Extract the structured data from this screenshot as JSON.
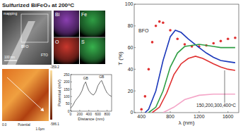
{
  "title": "Sulfurized BiFeO₃ at 200ᵒC",
  "tem": {
    "labels": [
      "mapping",
      "BFO",
      "FTO"
    ],
    "scale_bar": "100 nm"
  },
  "eds_maps": [
    {
      "label": "Bi",
      "color": "#8a3fb0"
    },
    {
      "label": "Fe",
      "color": "#2f9e44"
    },
    {
      "label": "O",
      "color": "#c8372d"
    },
    {
      "label": "S",
      "color": "#37b24d"
    }
  ],
  "afm": {
    "x_start": "0.0",
    "label": "Potential",
    "x_end": "1.0µm",
    "colorbar_max": -359.2,
    "colorbar_min": -586.1
  },
  "chart_data": [
    {
      "type": "line",
      "x_label": "Distance (nm)",
      "y_label": "Potential (mV)",
      "annotations": [
        "GB",
        "GB"
      ],
      "color": "#444444",
      "x": [
        0,
        50,
        100,
        150,
        200,
        250,
        300,
        330,
        360,
        400,
        450,
        500,
        550,
        600,
        650,
        680,
        720,
        760,
        800,
        850,
        900
      ],
      "values": [
        20,
        40,
        70,
        90,
        110,
        140,
        185,
        200,
        170,
        140,
        120,
        110,
        130,
        175,
        200,
        210,
        180,
        150,
        125,
        110,
        100
      ],
      "xlim": [
        0,
        900
      ],
      "xticks": [
        0,
        200,
        400,
        600,
        800
      ],
      "ylim": [
        0,
        250
      ],
      "yticks": [
        0,
        50,
        100,
        150,
        200,
        250
      ]
    },
    {
      "type": "line",
      "x_label": "λ (nm)",
      "y_label": "T (%)",
      "annotations": [
        "BFO",
        "150,200,300,400ᵒC"
      ],
      "xlim": [
        300,
        1750
      ],
      "xticks": [
        400,
        800,
        1200,
        1600
      ],
      "ylim": [
        0,
        100
      ],
      "yticks": [
        0,
        20,
        40,
        60,
        80,
        100
      ],
      "series": [
        {
          "color": "#e03131",
          "marker": "circle",
          "line_style": "none",
          "x": [
            400,
            450,
            500,
            550,
            600,
            650,
            700,
            800,
            900,
            1000,
            1100,
            1200,
            1300,
            1400,
            1500,
            1600,
            1700
          ],
          "values": [
            3,
            15,
            40,
            65,
            80,
            84,
            83,
            76,
            68,
            63,
            61,
            61,
            62,
            64,
            66,
            68,
            69
          ]
        },
        {
          "color": "#1c39bb",
          "line_style": "solid",
          "x": [
            450,
            500,
            600,
            700,
            800,
            870,
            950,
            1050,
            1200,
            1300,
            1400,
            1500,
            1600,
            1700
          ],
          "values": [
            0,
            3,
            20,
            48,
            70,
            76,
            74,
            68,
            60,
            55,
            51,
            48,
            47,
            46
          ]
        },
        {
          "color": "#2f9e44",
          "line_style": "solid",
          "x": [
            500,
            600,
            700,
            800,
            900,
            1000,
            1100,
            1200,
            1300,
            1400,
            1500,
            1600,
            1700
          ],
          "values": [
            0,
            5,
            20,
            42,
            55,
            61,
            62,
            63,
            62,
            61,
            60,
            60,
            60
          ]
        },
        {
          "color": "#e03131",
          "line_style": "solid",
          "x": [
            550,
            650,
            750,
            850,
            950,
            1050,
            1150,
            1250,
            1400,
            1500,
            1600,
            1700
          ],
          "values": [
            0,
            5,
            18,
            35,
            45,
            50,
            52,
            50,
            45,
            42,
            40,
            39
          ]
        },
        {
          "color": "#f4a6c8",
          "line_style": "solid",
          "x": [
            700,
            850,
            1000,
            1200,
            1400,
            1600,
            1700
          ],
          "values": [
            0,
            5,
            12,
            16,
            17,
            17,
            17
          ]
        }
      ]
    }
  ]
}
